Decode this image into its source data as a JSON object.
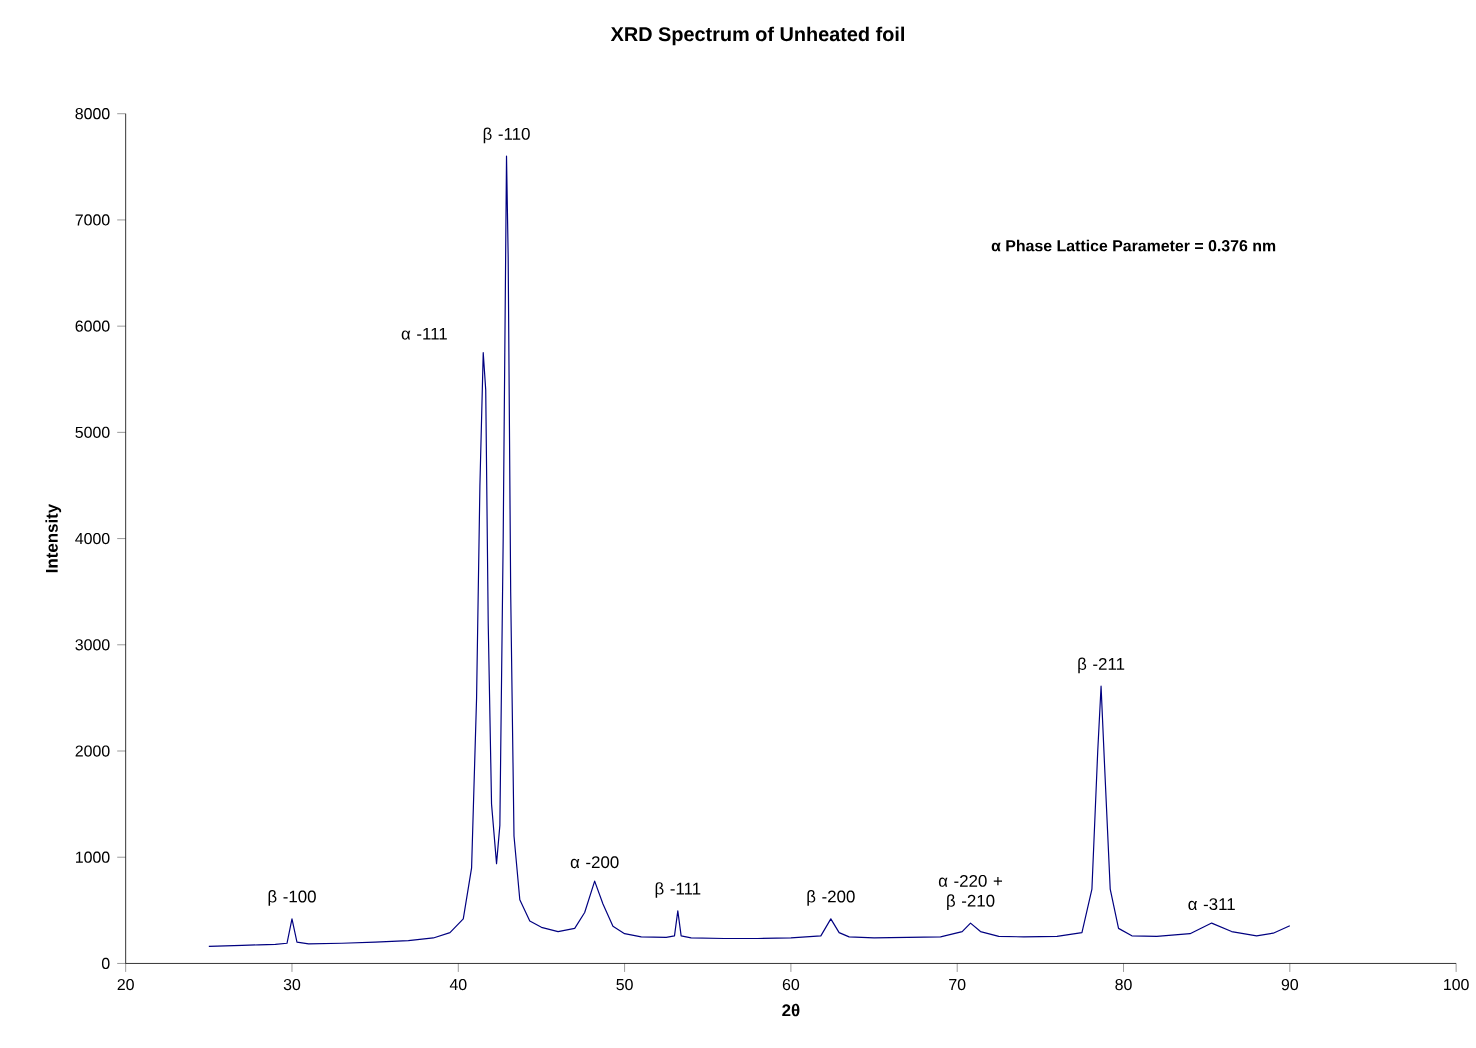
{
  "chart_data": {
    "type": "line",
    "title": "XRD Spectrum of Unheated foil",
    "xlabel": "2θ",
    "ylabel": "Intensity",
    "xlim": [
      20,
      100
    ],
    "xticks": [
      20,
      30,
      40,
      50,
      60,
      70,
      80,
      90,
      100
    ],
    "ylim": [
      0,
      8000
    ],
    "yticks": [
      0,
      1000,
      2000,
      3000,
      4000,
      5000,
      6000,
      7000,
      8000
    ],
    "grid": false,
    "marker": "none",
    "line_style": "solid",
    "series": [
      {
        "color": "#000080",
        "x": [
          25,
          26,
          27,
          28,
          29,
          29.7,
          30.0,
          30.3,
          31,
          33,
          35,
          37,
          38.5,
          39.5,
          40.3,
          40.8,
          41.1,
          41.3,
          41.5,
          41.65,
          41.8,
          42.0,
          42.3,
          42.5,
          42.7,
          42.9,
          43.0,
          43.15,
          43.35,
          43.7,
          44.3,
          45,
          46,
          47,
          47.6,
          48.2,
          48.7,
          49.3,
          50,
          51,
          52.5,
          53.0,
          53.2,
          53.4,
          54,
          56,
          58,
          60,
          61.8,
          62.4,
          62.9,
          63.5,
          65,
          67,
          69,
          70.3,
          70.8,
          71.4,
          72.5,
          74,
          76,
          77.5,
          78.1,
          78.45,
          78.65,
          78.85,
          79.2,
          79.7,
          80.5,
          82,
          84,
          85.3,
          86.5,
          88,
          89,
          90
        ],
        "values": [
          160,
          165,
          170,
          175,
          180,
          190,
          420,
          200,
          185,
          190,
          200,
          215,
          240,
          290,
          420,
          900,
          2500,
          4500,
          5750,
          5400,
          3200,
          1500,
          940,
          1300,
          4000,
          7600,
          6650,
          3500,
          1200,
          600,
          400,
          340,
          300,
          330,
          480,
          775,
          560,
          350,
          280,
          250,
          245,
          260,
          495,
          260,
          240,
          235,
          235,
          240,
          260,
          420,
          290,
          250,
          240,
          245,
          250,
          300,
          380,
          300,
          255,
          250,
          255,
          290,
          700,
          2000,
          2610,
          1900,
          700,
          330,
          260,
          255,
          280,
          380,
          300,
          260,
          285,
          355
        ]
      }
    ],
    "annotations": [
      {
        "text": "β -100",
        "x": 30.0,
        "y": 420
      },
      {
        "text": "α -111",
        "x": 41.5,
        "y": 5750
      },
      {
        "text": "β -110",
        "x": 42.9,
        "y": 7600
      },
      {
        "text": "α -200",
        "x": 48.2,
        "y": 775
      },
      {
        "text": "β -111",
        "x": 53.2,
        "y": 495
      },
      {
        "text": "β -200",
        "x": 62.4,
        "y": 420
      },
      {
        "text": "α -220 + β -210",
        "x": 70.8,
        "y": 380
      },
      {
        "text": "β -211",
        "x": 78.65,
        "y": 2610
      },
      {
        "text": "α -311",
        "x": 85.3,
        "y": 380
      },
      "α  Phase Lattice Parameter = 0.376 nm"
    ]
  }
}
